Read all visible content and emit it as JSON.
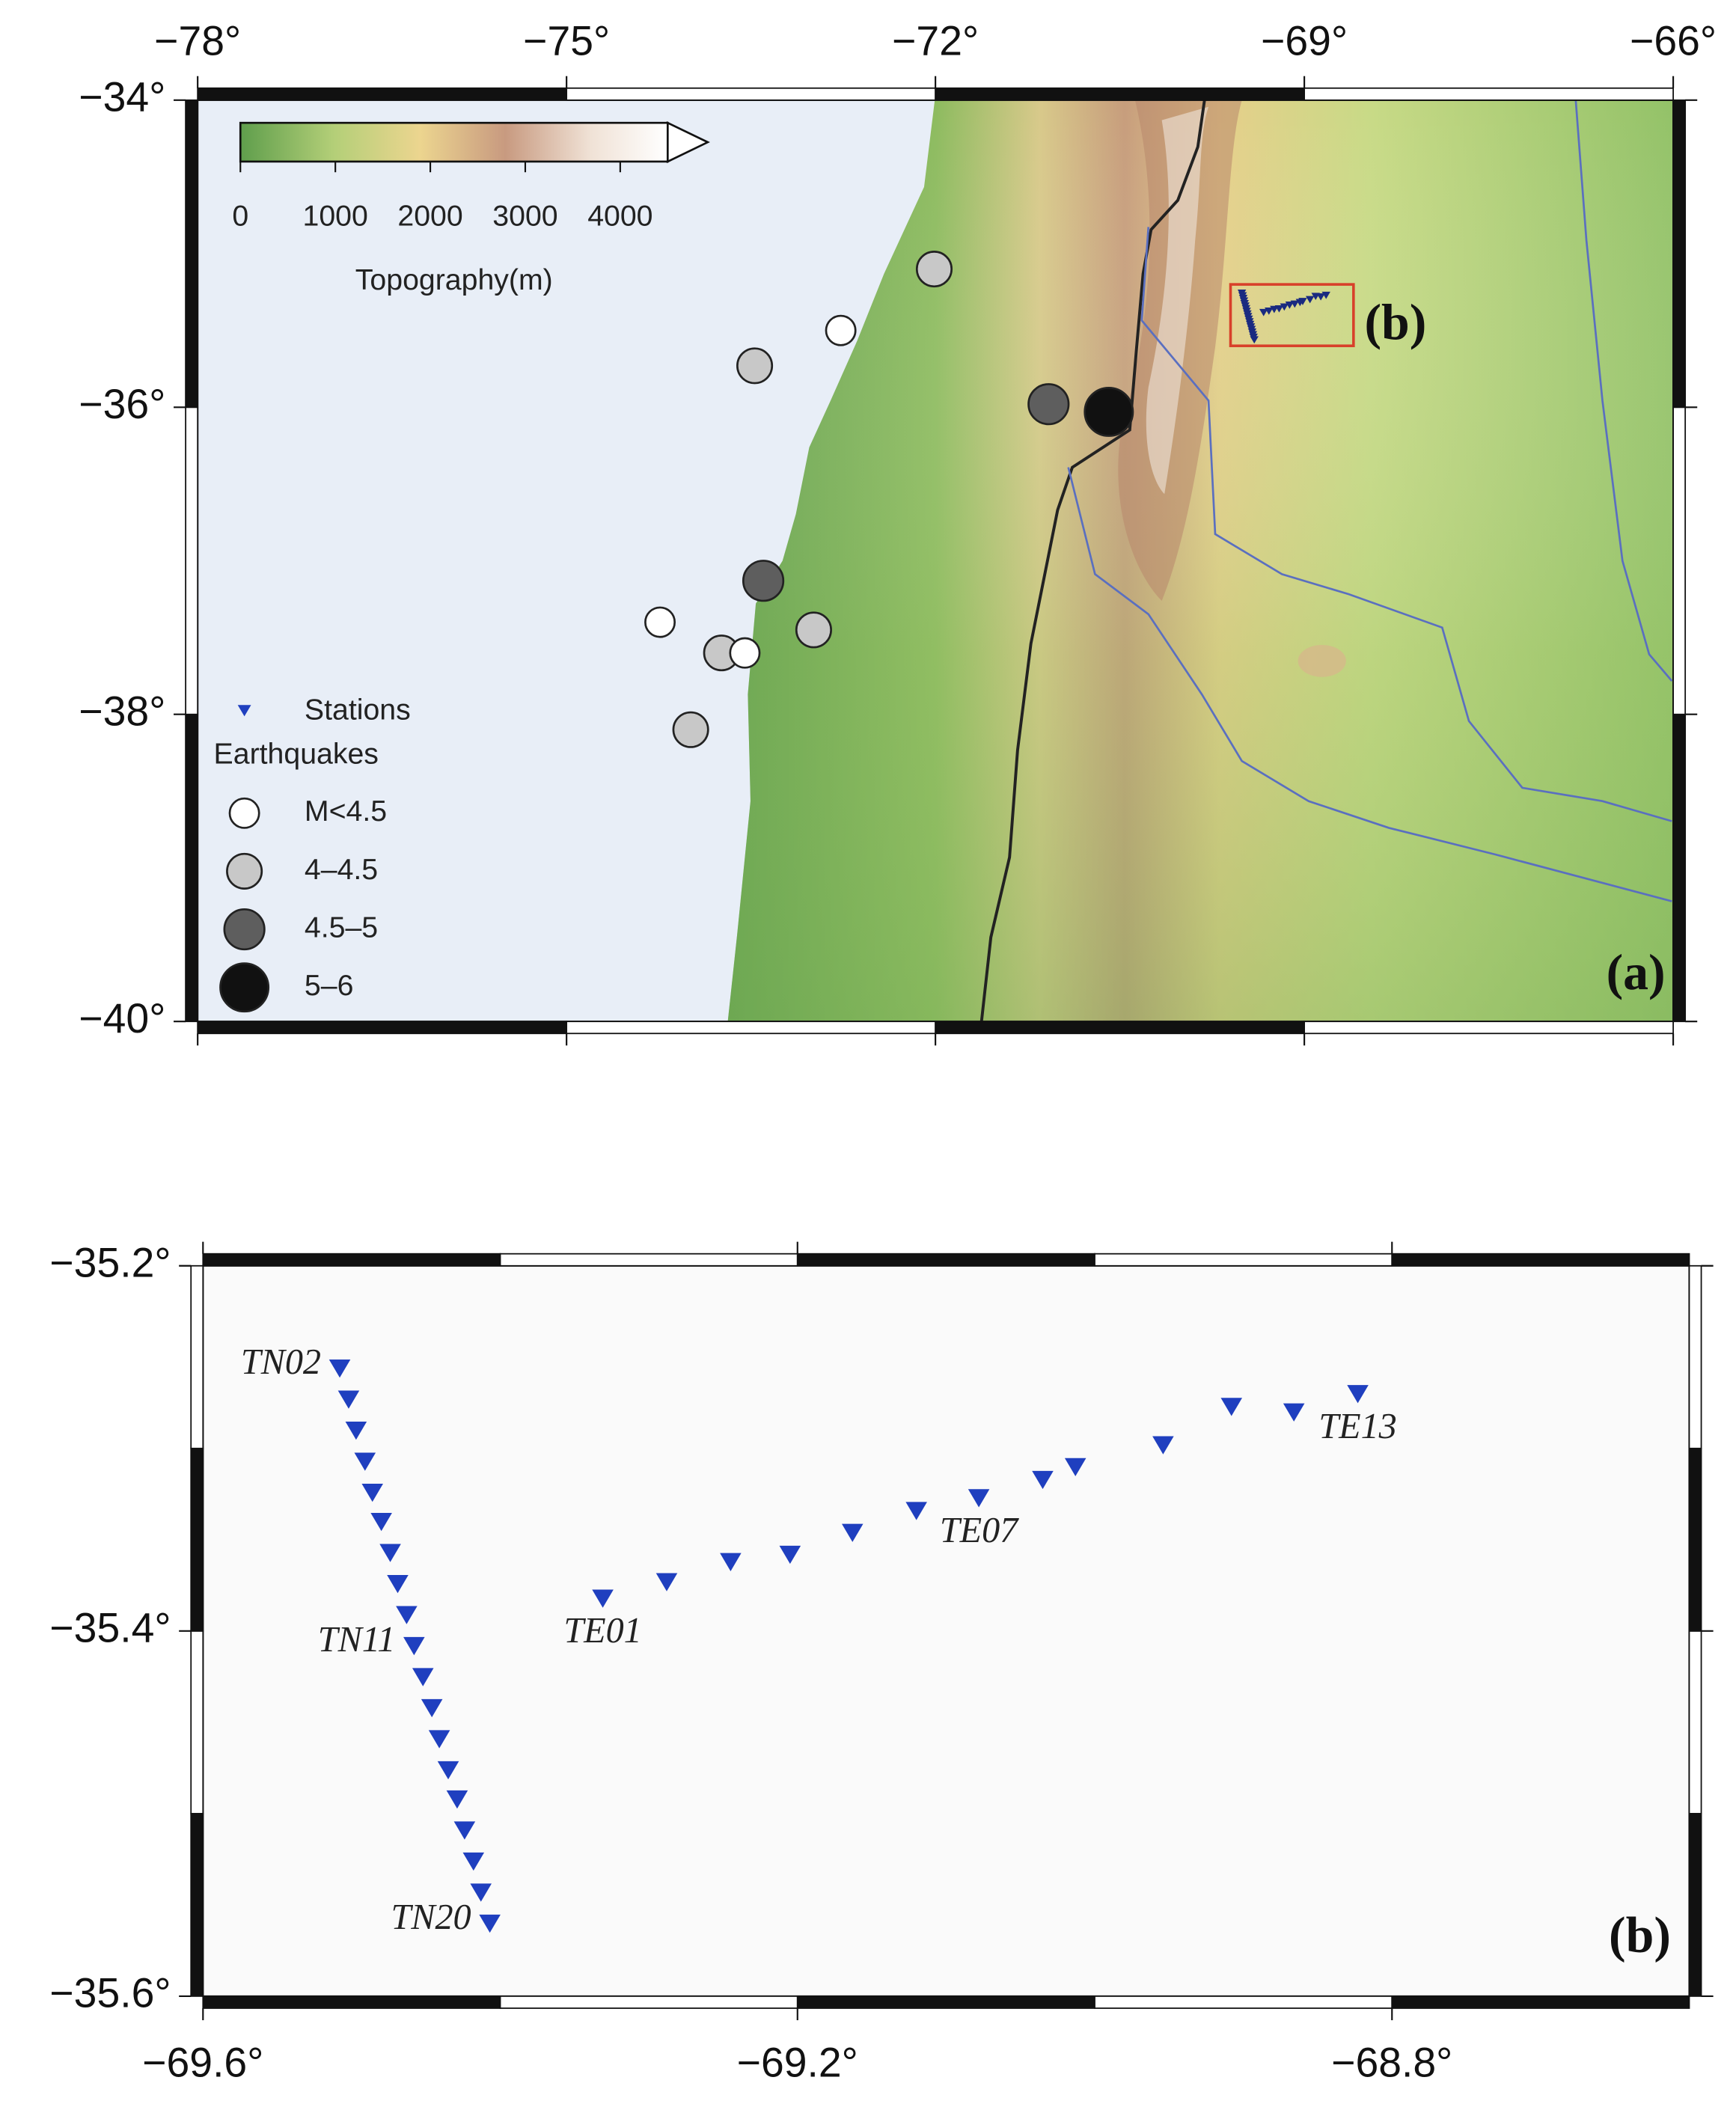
{
  "panels": [
    {
      "label": "(a)",
      "xlim": [
        -78,
        -66
      ],
      "ylim": [
        -40,
        -34
      ],
      "xticks": [
        {
          "value": -78,
          "label": "−78°"
        },
        {
          "value": -75,
          "label": "−75°"
        },
        {
          "value": -72,
          "label": "−72°"
        },
        {
          "value": -69,
          "label": "−69°"
        },
        {
          "value": -66,
          "label": "−66°"
        }
      ],
      "yticks": [
        {
          "value": -34,
          "label": "−34°"
        },
        {
          "value": -36,
          "label": "−36°"
        },
        {
          "value": -38,
          "label": "−38°"
        },
        {
          "value": -40,
          "label": "−40°"
        }
      ],
      "colorbar": {
        "title": "Topography(m)",
        "lim": [
          0,
          4500
        ],
        "ticks": [
          0,
          1000,
          2000,
          3000,
          4000
        ]
      },
      "inset_label": "(b)",
      "station_color": "#1f3fbf",
      "legend": {
        "stations": "Stations",
        "earthquakes": "Earthquakes",
        "classes": [
          {
            "label": "M<4.5",
            "color": "#ffffff"
          },
          {
            "label": "4–4.5",
            "color": "#c8c8c8"
          },
          {
            "label": "4.5–5",
            "color": "#5e5e5e"
          },
          {
            "label": "5–6",
            "color": "#111111"
          }
        ]
      },
      "earthquakes": [
        {
          "lon": -72.01,
          "lat": -35.1,
          "class": 1
        },
        {
          "lon": -72.77,
          "lat": -35.5,
          "class": 0
        },
        {
          "lon": -73.47,
          "lat": -35.73,
          "class": 1
        },
        {
          "lon": -71.08,
          "lat": -35.98,
          "class": 2
        },
        {
          "lon": -70.59,
          "lat": -36.03,
          "class": 3
        },
        {
          "lon": -73.4,
          "lat": -37.13,
          "class": 2
        },
        {
          "lon": -74.24,
          "lat": -37.4,
          "class": 0
        },
        {
          "lon": -72.99,
          "lat": -37.45,
          "class": 1
        },
        {
          "lon": -73.74,
          "lat": -37.6,
          "class": 1
        },
        {
          "lon": -73.55,
          "lat": -37.6,
          "class": 0
        },
        {
          "lon": -73.99,
          "lat": -38.1,
          "class": 1
        }
      ]
    },
    {
      "label": "(b)",
      "xlim": [
        -69.6,
        -68.6
      ],
      "ylim": [
        -35.6,
        -35.2
      ],
      "xticks": [
        {
          "value": -69.6,
          "label": "−69.6°"
        },
        {
          "value": -69.2,
          "label": "−69.2°"
        },
        {
          "value": -68.8,
          "label": "−68.8°"
        }
      ],
      "yticks": [
        {
          "value": -35.2,
          "label": "−35.2°"
        },
        {
          "value": -35.4,
          "label": "−35.4°"
        },
        {
          "value": -35.6,
          "label": "−35.6°"
        }
      ],
      "profiles": [
        {
          "stations": [
            {
              "lon": -69.508,
              "lat": -35.256,
              "name": "TN02"
            },
            {
              "lon": -69.502,
              "lat": -35.273
            },
            {
              "lon": -69.497,
              "lat": -35.29
            },
            {
              "lon": -69.491,
              "lat": -35.307
            },
            {
              "lon": -69.486,
              "lat": -35.324
            },
            {
              "lon": -69.48,
              "lat": -35.34
            },
            {
              "lon": -69.474,
              "lat": -35.357
            },
            {
              "lon": -69.469,
              "lat": -35.374
            },
            {
              "lon": -69.463,
              "lat": -35.391
            },
            {
              "lon": -69.458,
              "lat": -35.408,
              "name": "TN11"
            },
            {
              "lon": -69.452,
              "lat": -35.425
            },
            {
              "lon": -69.446,
              "lat": -35.442
            },
            {
              "lon": -69.441,
              "lat": -35.459
            },
            {
              "lon": -69.435,
              "lat": -35.476
            },
            {
              "lon": -69.429,
              "lat": -35.492
            },
            {
              "lon": -69.424,
              "lat": -35.509
            },
            {
              "lon": -69.418,
              "lat": -35.526
            },
            {
              "lon": -69.413,
              "lat": -35.543
            },
            {
              "lon": -69.407,
              "lat": -35.56,
              "name": "TN20"
            }
          ]
        },
        {
          "stations": [
            {
              "lon": -69.331,
              "lat": -35.382,
              "name": "TE01"
            },
            {
              "lon": -69.288,
              "lat": -35.373
            },
            {
              "lon": -69.245,
              "lat": -35.362
            },
            {
              "lon": -69.205,
              "lat": -35.358
            },
            {
              "lon": -69.163,
              "lat": -35.346
            },
            {
              "lon": -69.12,
              "lat": -35.334
            },
            {
              "lon": -69.078,
              "lat": -35.327,
              "name": "TE07"
            },
            {
              "lon": -69.035,
              "lat": -35.317
            },
            {
              "lon": -69.013,
              "lat": -35.31
            },
            {
              "lon": -68.954,
              "lat": -35.298
            },
            {
              "lon": -68.908,
              "lat": -35.277
            },
            {
              "lon": -68.866,
              "lat": -35.28
            },
            {
              "lon": -68.823,
              "lat": -35.27,
              "name": "TE13"
            }
          ]
        }
      ]
    }
  ]
}
